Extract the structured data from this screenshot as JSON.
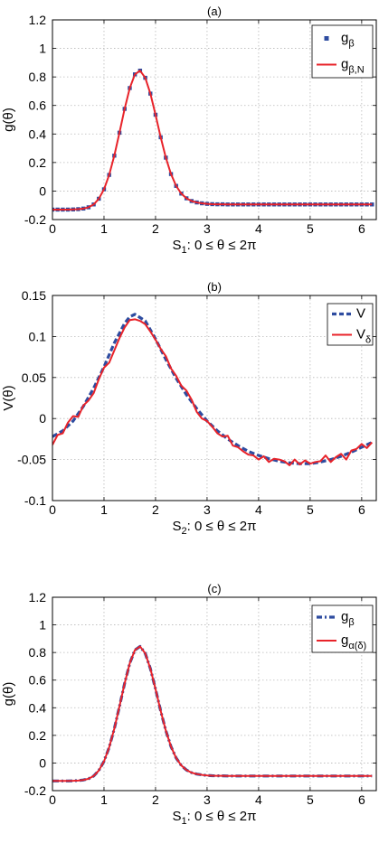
{
  "chart_data": [
    {
      "type": "line",
      "title": "(a)",
      "xlabel": "S",
      "xlabel_sub": "1",
      "xlabel_rest": ": 0 ≤ θ ≤ 2π",
      "ylabel": "g(θ)",
      "xlim": [
        0,
        6.2832
      ],
      "ylim": [
        -0.2,
        1.2
      ],
      "xticks": [
        "0",
        "1",
        "2",
        "3",
        "4",
        "5",
        "6"
      ],
      "yticks": [
        "-0.2",
        "0",
        "0.2",
        "0.4",
        "0.6",
        "0.8",
        "1",
        "1.2"
      ],
      "grid": true,
      "legend_position": "top-right",
      "series": [
        {
          "name": "g",
          "name_sub": "β",
          "style": "markers",
          "color": "#2e4ca0",
          "x": [
            0,
            0.1,
            0.2,
            0.3,
            0.4,
            0.5,
            0.6,
            0.7,
            0.8,
            0.9,
            1.0,
            1.1,
            1.2,
            1.3,
            1.4,
            1.5,
            1.6,
            1.7,
            1.8,
            1.9,
            2.0,
            2.1,
            2.2,
            2.3,
            2.4,
            2.5,
            2.6,
            2.7,
            2.8,
            2.9,
            3.0,
            3.1,
            3.2,
            3.3,
            3.4,
            3.5,
            3.6,
            3.7,
            3.8,
            3.9,
            4.0,
            4.1,
            4.2,
            4.3,
            4.4,
            4.5,
            4.6,
            4.7,
            4.8,
            4.9,
            5.0,
            5.1,
            5.2,
            5.3,
            5.4,
            5.5,
            5.6,
            5.7,
            5.8,
            5.9,
            6.0,
            6.1,
            6.2
          ],
          "y": [
            -0.13,
            -0.13,
            -0.13,
            -0.13,
            -0.129,
            -0.127,
            -0.123,
            -0.114,
            -0.094,
            -0.054,
            0.012,
            0.113,
            0.248,
            0.409,
            0.576,
            0.722,
            0.818,
            0.844,
            0.794,
            0.683,
            0.535,
            0.377,
            0.234,
            0.119,
            0.036,
            -0.018,
            -0.051,
            -0.07,
            -0.08,
            -0.086,
            -0.09,
            -0.092,
            -0.093,
            -0.093,
            -0.094,
            -0.094,
            -0.094,
            -0.094,
            -0.094,
            -0.094,
            -0.094,
            -0.094,
            -0.094,
            -0.094,
            -0.094,
            -0.094,
            -0.094,
            -0.094,
            -0.094,
            -0.094,
            -0.094,
            -0.094,
            -0.094,
            -0.094,
            -0.094,
            -0.094,
            -0.094,
            -0.094,
            -0.094,
            -0.094,
            -0.094,
            -0.094,
            -0.094
          ]
        },
        {
          "name": "g",
          "name_sub": "β,N",
          "style": "solid",
          "color": "#e8232a",
          "x": [
            0,
            0.1,
            0.2,
            0.3,
            0.4,
            0.5,
            0.6,
            0.7,
            0.8,
            0.9,
            1.0,
            1.1,
            1.2,
            1.3,
            1.4,
            1.5,
            1.6,
            1.7,
            1.8,
            1.9,
            2.0,
            2.1,
            2.2,
            2.3,
            2.4,
            2.5,
            2.6,
            2.7,
            2.8,
            2.9,
            3.0,
            3.1,
            3.2,
            3.3,
            3.4,
            3.5,
            3.6,
            3.7,
            3.8,
            3.9,
            4.0,
            4.1,
            4.2,
            4.3,
            4.4,
            4.5,
            4.6,
            4.7,
            4.8,
            4.9,
            5.0,
            5.1,
            5.2,
            5.3,
            5.4,
            5.5,
            5.6,
            5.7,
            5.8,
            5.9,
            6.0,
            6.1,
            6.2
          ],
          "y": [
            -0.13,
            -0.13,
            -0.13,
            -0.13,
            -0.129,
            -0.127,
            -0.123,
            -0.114,
            -0.094,
            -0.054,
            0.012,
            0.113,
            0.248,
            0.409,
            0.576,
            0.722,
            0.818,
            0.844,
            0.794,
            0.683,
            0.535,
            0.377,
            0.234,
            0.119,
            0.036,
            -0.018,
            -0.051,
            -0.07,
            -0.08,
            -0.086,
            -0.09,
            -0.092,
            -0.093,
            -0.093,
            -0.094,
            -0.094,
            -0.094,
            -0.094,
            -0.094,
            -0.094,
            -0.094,
            -0.094,
            -0.094,
            -0.094,
            -0.094,
            -0.094,
            -0.094,
            -0.094,
            -0.094,
            -0.094,
            -0.094,
            -0.094,
            -0.094,
            -0.094,
            -0.094,
            -0.094,
            -0.094,
            -0.094,
            -0.094,
            -0.094,
            -0.094,
            -0.094,
            -0.094
          ]
        }
      ]
    },
    {
      "type": "line",
      "title": "(b)",
      "xlabel": "S",
      "xlabel_sub": "2",
      "xlabel_rest": ": 0 ≤ θ ≤ 2π",
      "ylabel": "V(θ)",
      "xlim": [
        0,
        6.2832
      ],
      "ylim": [
        -0.1,
        0.15
      ],
      "xticks": [
        "0",
        "1",
        "2",
        "3",
        "4",
        "5",
        "6"
      ],
      "yticks": [
        "-0.1",
        "-0.05",
        "0",
        "0.05",
        "0.1",
        "0.15"
      ],
      "grid": true,
      "legend_position": "top-right",
      "series": [
        {
          "name": "V",
          "name_sub": "",
          "style": "dashed",
          "color": "#2e4ca0",
          "x": [
            0,
            0.2,
            0.4,
            0.6,
            0.8,
            1.0,
            1.2,
            1.4,
            1.5,
            1.6,
            1.8,
            2.0,
            2.2,
            2.4,
            2.6,
            2.8,
            3.0,
            3.2,
            3.4,
            3.6,
            3.8,
            4.0,
            4.2,
            4.4,
            4.6,
            4.8,
            5.0,
            5.2,
            5.4,
            5.6,
            5.8,
            6.0,
            6.2
          ],
          "y": [
            -0.022,
            -0.015,
            -0.003,
            0.015,
            0.037,
            0.063,
            0.092,
            0.116,
            0.124,
            0.127,
            0.119,
            0.097,
            0.072,
            0.049,
            0.029,
            0.012,
            -0.003,
            -0.015,
            -0.025,
            -0.033,
            -0.04,
            -0.045,
            -0.049,
            -0.052,
            -0.054,
            -0.055,
            -0.055,
            -0.053,
            -0.05,
            -0.046,
            -0.041,
            -0.035,
            -0.029
          ]
        },
        {
          "name": "V",
          "name_sub": "δ",
          "style": "solid",
          "color": "#e8232a",
          "x": [
            0,
            0.1,
            0.2,
            0.3,
            0.4,
            0.5,
            0.6,
            0.7,
            0.8,
            0.9,
            1.0,
            1.1,
            1.2,
            1.3,
            1.4,
            1.5,
            1.6,
            1.7,
            1.8,
            1.9,
            2.0,
            2.1,
            2.2,
            2.3,
            2.4,
            2.5,
            2.6,
            2.7,
            2.8,
            2.9,
            3.0,
            3.1,
            3.2,
            3.3,
            3.4,
            3.5,
            3.6,
            3.7,
            3.8,
            3.9,
            4.0,
            4.1,
            4.2,
            4.3,
            4.4,
            4.5,
            4.6,
            4.7,
            4.8,
            4.9,
            5.0,
            5.1,
            5.2,
            5.3,
            5.4,
            5.5,
            5.6,
            5.7,
            5.8,
            5.9,
            6.0,
            6.1,
            6.2
          ],
          "y": [
            -0.032,
            -0.02,
            -0.018,
            -0.005,
            0.003,
            0.002,
            0.016,
            0.022,
            0.031,
            0.048,
            0.062,
            0.068,
            0.083,
            0.098,
            0.111,
            0.12,
            0.121,
            0.119,
            0.115,
            0.106,
            0.096,
            0.085,
            0.076,
            0.061,
            0.052,
            0.04,
            0.034,
            0.023,
            0.008,
            0.0,
            -0.003,
            -0.01,
            -0.018,
            -0.022,
            -0.021,
            -0.033,
            -0.035,
            -0.04,
            -0.044,
            -0.045,
            -0.05,
            -0.046,
            -0.053,
            -0.049,
            -0.05,
            -0.052,
            -0.057,
            -0.05,
            -0.056,
            -0.051,
            -0.055,
            -0.053,
            -0.052,
            -0.045,
            -0.053,
            -0.047,
            -0.043,
            -0.05,
            -0.039,
            -0.037,
            -0.031,
            -0.036,
            -0.029
          ]
        }
      ]
    },
    {
      "type": "line",
      "title": "(c)",
      "xlabel": "S",
      "xlabel_sub": "1",
      "xlabel_rest": ": 0 ≤ θ ≤ 2π",
      "ylabel": "g(θ)",
      "xlim": [
        0,
        6.2832
      ],
      "ylim": [
        -0.2,
        1.2
      ],
      "xticks": [
        "0",
        "1",
        "2",
        "3",
        "4",
        "5",
        "6"
      ],
      "yticks": [
        "-0.2",
        "0",
        "0.2",
        "0.4",
        "0.6",
        "0.8",
        "1",
        "1.2"
      ],
      "grid": true,
      "legend_position": "top-right",
      "series": [
        {
          "name": "g",
          "name_sub": "β",
          "style": "dashdot",
          "color": "#2e4ca0",
          "x": [
            0,
            0.1,
            0.2,
            0.3,
            0.4,
            0.5,
            0.6,
            0.7,
            0.8,
            0.9,
            1.0,
            1.1,
            1.2,
            1.3,
            1.4,
            1.5,
            1.6,
            1.7,
            1.8,
            1.9,
            2.0,
            2.1,
            2.2,
            2.3,
            2.4,
            2.5,
            2.6,
            2.7,
            2.8,
            2.9,
            3.0,
            3.1,
            3.2,
            3.3,
            3.4,
            3.5,
            3.6,
            3.7,
            3.8,
            3.9,
            4.0,
            4.1,
            4.2,
            4.3,
            4.4,
            4.5,
            4.6,
            4.7,
            4.8,
            4.9,
            5.0,
            5.1,
            5.2,
            5.3,
            5.4,
            5.5,
            5.6,
            5.7,
            5.8,
            5.9,
            6.0,
            6.1,
            6.2
          ],
          "y": [
            -0.13,
            -0.13,
            -0.13,
            -0.13,
            -0.129,
            -0.127,
            -0.123,
            -0.114,
            -0.094,
            -0.054,
            0.012,
            0.113,
            0.248,
            0.409,
            0.576,
            0.722,
            0.818,
            0.844,
            0.794,
            0.683,
            0.535,
            0.377,
            0.234,
            0.119,
            0.036,
            -0.018,
            -0.051,
            -0.07,
            -0.08,
            -0.086,
            -0.09,
            -0.092,
            -0.093,
            -0.093,
            -0.094,
            -0.094,
            -0.094,
            -0.094,
            -0.094,
            -0.094,
            -0.094,
            -0.094,
            -0.094,
            -0.094,
            -0.094,
            -0.094,
            -0.094,
            -0.094,
            -0.094,
            -0.094,
            -0.094,
            -0.094,
            -0.094,
            -0.094,
            -0.094,
            -0.094,
            -0.094,
            -0.094,
            -0.094,
            -0.094,
            -0.094,
            -0.094,
            -0.094
          ]
        },
        {
          "name": "g",
          "name_sub": "α(δ)",
          "style": "solid",
          "color": "#e8232a",
          "x": [
            0,
            0.1,
            0.2,
            0.3,
            0.4,
            0.5,
            0.6,
            0.7,
            0.8,
            0.9,
            1.0,
            1.1,
            1.2,
            1.3,
            1.4,
            1.5,
            1.6,
            1.7,
            1.8,
            1.9,
            2.0,
            2.1,
            2.2,
            2.3,
            2.4,
            2.5,
            2.6,
            2.7,
            2.8,
            2.9,
            3.0,
            3.1,
            3.2,
            3.3,
            3.4,
            3.5,
            3.6,
            3.7,
            3.8,
            3.9,
            4.0,
            4.1,
            4.2,
            4.3,
            4.4,
            4.5,
            4.6,
            4.7,
            4.8,
            4.9,
            5.0,
            5.1,
            5.2,
            5.3,
            5.4,
            5.5,
            5.6,
            5.7,
            5.8,
            5.9,
            6.0,
            6.1,
            6.2
          ],
          "y": [
            -0.13,
            -0.13,
            -0.13,
            -0.13,
            -0.129,
            -0.127,
            -0.123,
            -0.114,
            -0.094,
            -0.054,
            0.012,
            0.113,
            0.248,
            0.409,
            0.576,
            0.722,
            0.818,
            0.844,
            0.794,
            0.683,
            0.535,
            0.377,
            0.234,
            0.119,
            0.036,
            -0.018,
            -0.051,
            -0.07,
            -0.08,
            -0.086,
            -0.09,
            -0.092,
            -0.093,
            -0.093,
            -0.094,
            -0.094,
            -0.094,
            -0.094,
            -0.094,
            -0.094,
            -0.094,
            -0.094,
            -0.094,
            -0.094,
            -0.094,
            -0.094,
            -0.094,
            -0.094,
            -0.094,
            -0.094,
            -0.094,
            -0.094,
            -0.094,
            -0.094,
            -0.094,
            -0.094,
            -0.094,
            -0.094,
            -0.094,
            -0.094,
            -0.094,
            -0.094,
            -0.094
          ]
        }
      ]
    }
  ]
}
